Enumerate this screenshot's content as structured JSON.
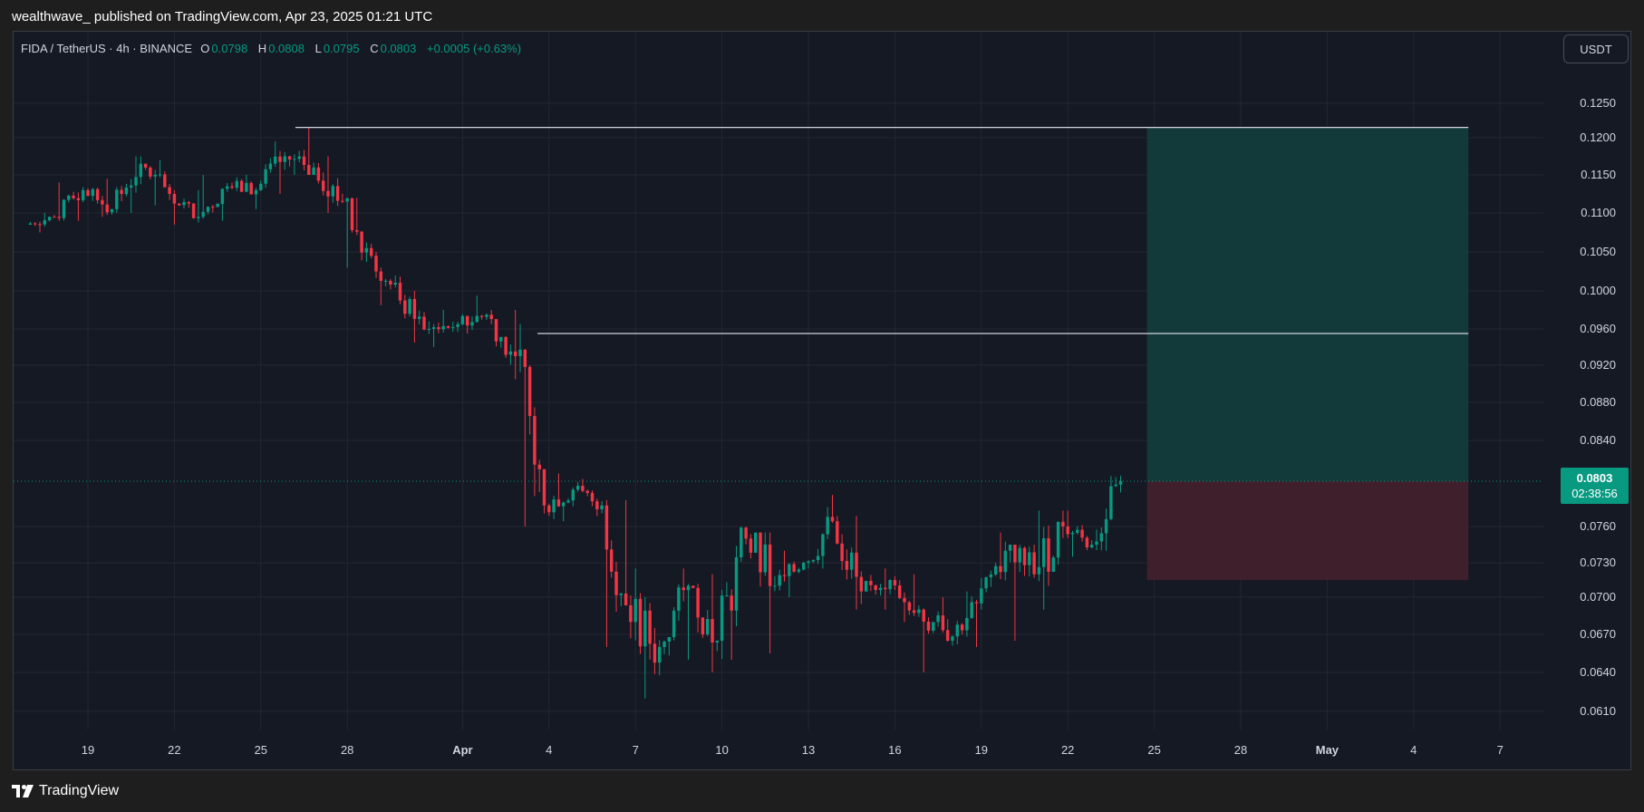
{
  "header": {
    "publish_text": "wealthwave_ published on TradingView.com, Apr 23, 2025 01:21 UTC"
  },
  "legend": {
    "symbol": "FIDA / TetherUS · 4h · BINANCE",
    "open_label": "O",
    "open": "0.0798",
    "high_label": "H",
    "high": "0.0808",
    "low_label": "L",
    "low": "0.0795",
    "close_label": "C",
    "close": "0.0803",
    "change": "+0.0005 (+0.63%)"
  },
  "currency_button": "USDT",
  "price_tag": {
    "price": "0.0803",
    "countdown": "02:38:56"
  },
  "footer": {
    "brand": "TradingView"
  },
  "colors": {
    "up": "#089981",
    "down": "#f23645",
    "background": "#151924",
    "grid": "#232632",
    "target_zone": "#123a3a",
    "stop_zone": "#3f1f2b",
    "level_line": "#d1d4dc"
  },
  "chart_data": {
    "type": "candlestick",
    "timeframe": "4h",
    "x_ticks": [
      "19",
      "22",
      "25",
      "28",
      "Apr",
      "4",
      "7",
      "10",
      "13",
      "16",
      "19",
      "22",
      "25",
      "28",
      "May",
      "4",
      "7"
    ],
    "y_ticks": [
      "0.1250",
      "0.1200",
      "0.1150",
      "0.1100",
      "0.1050",
      "0.1000",
      "0.0960",
      "0.0920",
      "0.0880",
      "0.0840",
      "0.0760",
      "0.0730",
      "0.0700",
      "0.0670",
      "0.0640",
      "0.0610"
    ],
    "ohlc_approx": [
      {
        "date": "Mar 17",
        "o": 0.1085,
        "h": 0.11,
        "l": 0.1075,
        "c": 0.1095
      },
      {
        "date": "Mar 18",
        "o": 0.1095,
        "h": 0.114,
        "l": 0.109,
        "c": 0.113
      },
      {
        "date": "Mar 19",
        "o": 0.113,
        "h": 0.1145,
        "l": 0.1095,
        "c": 0.1105
      },
      {
        "date": "Mar 20",
        "o": 0.1105,
        "h": 0.1175,
        "l": 0.11,
        "c": 0.1165
      },
      {
        "date": "Mar 21",
        "o": 0.1165,
        "h": 0.117,
        "l": 0.111,
        "c": 0.1125
      },
      {
        "date": "Mar 22",
        "o": 0.1125,
        "h": 0.113,
        "l": 0.1085,
        "c": 0.1095
      },
      {
        "date": "Mar 23",
        "o": 0.1095,
        "h": 0.115,
        "l": 0.109,
        "c": 0.1135
      },
      {
        "date": "Mar 24",
        "o": 0.1135,
        "h": 0.115,
        "l": 0.1105,
        "c": 0.113
      },
      {
        "date": "Mar 25",
        "o": 0.113,
        "h": 0.1195,
        "l": 0.1125,
        "c": 0.1175
      },
      {
        "date": "Mar 26",
        "o": 0.1175,
        "h": 0.1215,
        "l": 0.115,
        "c": 0.116
      },
      {
        "date": "Mar 27",
        "o": 0.116,
        "h": 0.1175,
        "l": 0.11,
        "c": 0.1115
      },
      {
        "date": "Mar 28",
        "o": 0.1115,
        "h": 0.112,
        "l": 0.103,
        "c": 0.1045
      },
      {
        "date": "Mar 29",
        "o": 0.1045,
        "h": 0.105,
        "l": 0.0985,
        "c": 0.099
      },
      {
        "date": "Mar 30",
        "o": 0.099,
        "h": 0.1,
        "l": 0.0945,
        "c": 0.096
      },
      {
        "date": "Mar 31",
        "o": 0.096,
        "h": 0.098,
        "l": 0.094,
        "c": 0.0965
      },
      {
        "date": "Apr 1",
        "o": 0.0965,
        "h": 0.0995,
        "l": 0.0955,
        "c": 0.0975
      },
      {
        "date": "Apr 2",
        "o": 0.0975,
        "h": 0.098,
        "l": 0.0905,
        "c": 0.093
      },
      {
        "date": "Apr 3",
        "o": 0.093,
        "h": 0.0965,
        "l": 0.076,
        "c": 0.078
      },
      {
        "date": "Apr 4",
        "o": 0.078,
        "h": 0.081,
        "l": 0.0765,
        "c": 0.0795
      },
      {
        "date": "Apr 5",
        "o": 0.0795,
        "h": 0.0805,
        "l": 0.077,
        "c": 0.078
      },
      {
        "date": "Apr 6",
        "o": 0.078,
        "h": 0.0785,
        "l": 0.066,
        "c": 0.068
      },
      {
        "date": "Apr 7",
        "o": 0.068,
        "h": 0.0725,
        "l": 0.062,
        "c": 0.066
      },
      {
        "date": "Apr 8",
        "o": 0.066,
        "h": 0.0725,
        "l": 0.065,
        "c": 0.071
      },
      {
        "date": "Apr 9",
        "o": 0.071,
        "h": 0.072,
        "l": 0.064,
        "c": 0.0665
      },
      {
        "date": "Apr 10",
        "o": 0.0665,
        "h": 0.076,
        "l": 0.065,
        "c": 0.075
      },
      {
        "date": "Apr 11",
        "o": 0.075,
        "h": 0.0755,
        "l": 0.0655,
        "c": 0.071
      },
      {
        "date": "Apr 12",
        "o": 0.071,
        "h": 0.074,
        "l": 0.07,
        "c": 0.073
      },
      {
        "date": "Apr 13",
        "o": 0.073,
        "h": 0.079,
        "l": 0.0725,
        "c": 0.0765
      },
      {
        "date": "Apr 14",
        "o": 0.0765,
        "h": 0.077,
        "l": 0.069,
        "c": 0.0705
      },
      {
        "date": "Apr 15",
        "o": 0.0705,
        "h": 0.0725,
        "l": 0.069,
        "c": 0.0715
      },
      {
        "date": "Apr 16",
        "o": 0.0715,
        "h": 0.072,
        "l": 0.068,
        "c": 0.069
      },
      {
        "date": "Apr 17",
        "o": 0.069,
        "h": 0.07,
        "l": 0.064,
        "c": 0.0665
      },
      {
        "date": "Apr 18",
        "o": 0.0665,
        "h": 0.0705,
        "l": 0.066,
        "c": 0.0695
      },
      {
        "date": "Apr 19",
        "o": 0.0695,
        "h": 0.0755,
        "l": 0.069,
        "c": 0.074
      },
      {
        "date": "Apr 20",
        "o": 0.074,
        "h": 0.0745,
        "l": 0.0665,
        "c": 0.072
      },
      {
        "date": "Apr 21",
        "o": 0.072,
        "h": 0.0775,
        "l": 0.069,
        "c": 0.076
      },
      {
        "date": "Apr 22",
        "o": 0.076,
        "h": 0.0775,
        "l": 0.0735,
        "c": 0.0745
      },
      {
        "date": "Apr 23",
        "o": 0.0745,
        "h": 0.0808,
        "l": 0.074,
        "c": 0.0803
      }
    ],
    "last_price": 0.0803,
    "drawings": {
      "horizontal_levels": [
        0.1215,
        0.0955
      ],
      "position": {
        "entry": 0.0803,
        "target": 0.1215,
        "stop": 0.0715,
        "type": "long"
      }
    },
    "grid": true
  }
}
